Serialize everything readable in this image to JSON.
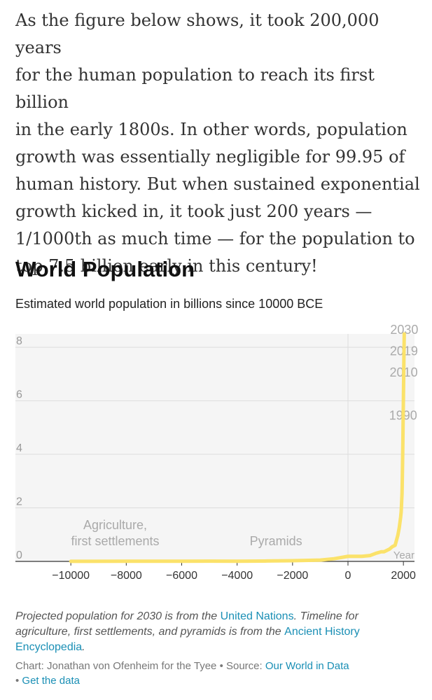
{
  "intro": {
    "lines": [
      "As the figure below shows, it took 200,000 years",
      "for the human population to reach its first billion",
      "in the early 1800s. In other words, population",
      "growth was essentially negligible for 99.95 of",
      "human history. But when sustained exponential",
      "growth kicked in, it took just 200 years —",
      "1/1000th as much time — for the population to",
      "top 7.5 billion early in this century!"
    ]
  },
  "colors": {
    "line": "#fbe26a",
    "plot_bg": "#f5f5f5",
    "grid": "#dddddd",
    "annotation": "#aaaaaa",
    "link": "#1a8fb5"
  },
  "chart_data": {
    "type": "line",
    "title": "World Population",
    "subtitle": "Estimated world population in billions since 10000 BCE",
    "xlabel": "Year",
    "ylabel": "",
    "xlim": [
      -12000,
      2400
    ],
    "ylim": [
      0,
      8.5
    ],
    "xticks": [
      -10000,
      -8000,
      -6000,
      -4000,
      -2000,
      0,
      2000
    ],
    "xtick_labels": [
      "−10000",
      "−8000",
      "−6000",
      "−4000",
      "−2000",
      "0",
      "2000"
    ],
    "yticks": [
      0,
      2,
      4,
      6,
      8
    ],
    "ytick_labels": [
      "0",
      "2",
      "4",
      "6",
      "8"
    ],
    "grid": true,
    "series": [
      {
        "x": [
          -10000,
          -8000,
          -6000,
          -5000,
          -4000,
          -3000,
          -2000,
          -1000,
          -500,
          0,
          200,
          500,
          800,
          1000,
          1200,
          1300,
          1500,
          1600,
          1700,
          1750,
          1800,
          1850,
          1900,
          1920,
          1950,
          1960,
          1970,
          1980,
          1990,
          2000,
          2010,
          2019,
          2030
        ],
        "y": [
          0.004,
          0.005,
          0.005,
          0.01,
          0.007,
          0.014,
          0.027,
          0.05,
          0.1,
          0.19,
          0.19,
          0.19,
          0.22,
          0.3,
          0.36,
          0.36,
          0.46,
          0.55,
          0.6,
          0.79,
          0.98,
          1.26,
          1.65,
          1.86,
          2.52,
          3.03,
          3.7,
          4.44,
          5.3,
          6.1,
          6.9,
          7.7,
          8.5
        ]
      }
    ],
    "annotations": [
      {
        "x": -8400,
        "y": 0.6,
        "lines": [
          "Agriculture,",
          "first settlements"
        ]
      },
      {
        "x": -2600,
        "y": 0.6,
        "lines": [
          "Pyramids"
        ]
      },
      {
        "x": 1990,
        "y": 5.3,
        "lines": [
          "1990"
        ]
      },
      {
        "x": 2010,
        "y": 6.9,
        "lines": [
          "2010"
        ]
      },
      {
        "x": 2019,
        "y": 7.7,
        "lines": [
          "2019"
        ]
      },
      {
        "x": 2030,
        "y": 8.5,
        "lines": [
          "2030"
        ]
      }
    ]
  },
  "notes": {
    "text1": "Projected population for 2030 is from the ",
    "link1": "United Nations",
    "text2": ". Timeline for agriculture, first settlements, and pyramids is from the ",
    "link2": "Ancient History Encyclopedia",
    "text3": "."
  },
  "credit": {
    "text1": "Chart: Jonathan von Ofenheim for the Tyee • Source: ",
    "link1": "Our World in Data",
    "sep": "• ",
    "link2": "Get the data"
  }
}
